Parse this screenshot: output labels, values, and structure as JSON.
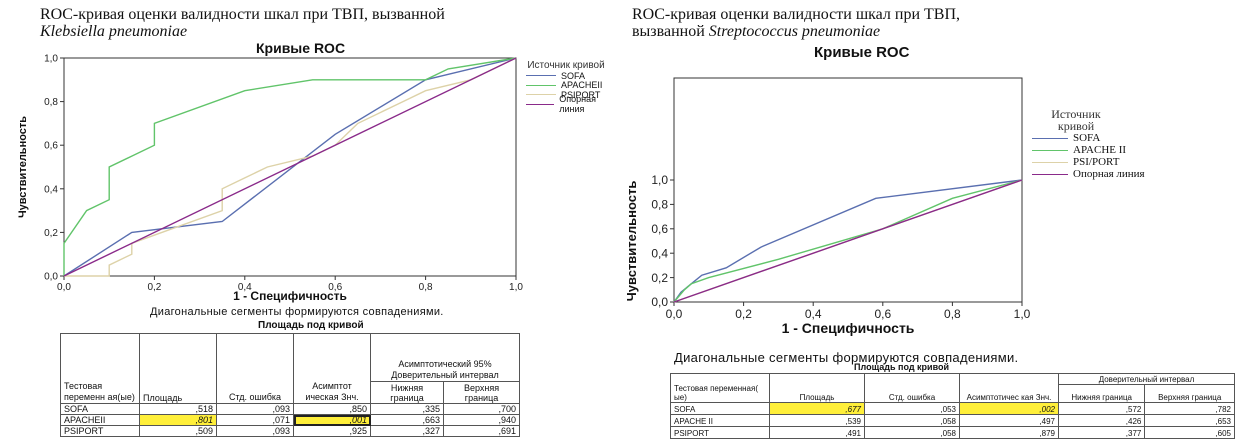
{
  "colors": {
    "SOFA": "#5a6fb0",
    "APACHEII": "#61c46a",
    "PSIPORT": "#ddd2a8",
    "reference": "#8a2a8a",
    "highlight": "#ffef3a"
  },
  "left": {
    "heading_line1": "ROC-кривая оценки валидности шкал при ТВП, вызванной",
    "heading_line2": "Klebsiella pneumoniae",
    "caption": "Диагональные сегменты формируются совпадениями.",
    "table": {
      "title": "Площадь под кривой",
      "header_test_variable": "Тестовая переменн ая(ые)",
      "header_area": "Площадь",
      "header_std_error": "Стд. ошибка",
      "header_asymp_sig": "Асимптот ическая Знч.",
      "header_ci": "Асимптотический 95% Доверительный интервал",
      "header_lower": "Нижняя граница",
      "header_upper": "Верхняя граница",
      "rows": [
        {
          "name": "SOFA",
          "area": ",518",
          "std_error": ",093",
          "sig": ",850",
          "lower": ",335",
          "upper": ",700"
        },
        {
          "name": "APACHEII",
          "area": ",801",
          "std_error": ",071",
          "sig": ",001",
          "lower": ",663",
          "upper": ",940"
        },
        {
          "name": "PSIPORT",
          "area": ",509",
          "std_error": ",093",
          "sig": ",925",
          "lower": ",327",
          "upper": ",691"
        }
      ]
    }
  },
  "right": {
    "heading_line1": "ROC-кривая оценки валидности шкал при ТВП,",
    "heading_line2_prefix": "вызванной",
    "heading_line2_italic": "Streptococcus pneumoniae",
    "caption": "Диагональные сегменты формируются совпадениями.",
    "table": {
      "title": "Площадь под кривой",
      "header_test_variable": "Тестовая переменная( ые)",
      "header_area": "Площадь",
      "header_std_error": "Стд. ошибка",
      "header_asymp_sig": "Асимптотичес кая Знч.",
      "header_ci": "Доверительный интервал",
      "header_lower": "Нижняя граница",
      "header_upper": "Верхняя граница",
      "rows": [
        {
          "name": "SOFA",
          "area": ",677",
          "std_error": ",053",
          "sig": ",002",
          "lower": ",572",
          "upper": ",782"
        },
        {
          "name": "APACHE II",
          "area": ",539",
          "std_error": ",058",
          "sig": ",497",
          "lower": ",426",
          "upper": ",653"
        },
        {
          "name": "PSIPORT",
          "area": ",491",
          "std_error": ",058",
          "sig": ",879",
          "lower": ",377",
          "upper": ",605"
        }
      ]
    }
  },
  "chart_data": [
    {
      "type": "line",
      "title": "Кривые ROC",
      "xlabel": "1 - Специфичность",
      "ylabel": "Чувствительность",
      "xlim": [
        0,
        1
      ],
      "ylim": [
        0,
        1
      ],
      "x_ticks": [
        "0,0",
        "0,2",
        "0,4",
        "0,6",
        "0,8",
        "1,0"
      ],
      "y_ticks": [
        "0,0",
        "0,2",
        "0,4",
        "0,6",
        "0,8",
        "1,0"
      ],
      "legend_title": "Источник кривой",
      "legend_position": "right",
      "series": [
        {
          "name": "SOFA",
          "color_key": "SOFA",
          "points": [
            [
              0,
              0
            ],
            [
              0.15,
              0.2
            ],
            [
              0.35,
              0.25
            ],
            [
              0.6,
              0.65
            ],
            [
              0.8,
              0.9
            ],
            [
              1,
              1
            ]
          ]
        },
        {
          "name": "APACHEII",
          "color_key": "APACHEII",
          "points": [
            [
              0,
              0
            ],
            [
              0,
              0.15
            ],
            [
              0.05,
              0.3
            ],
            [
              0.1,
              0.35
            ],
            [
              0.1,
              0.5
            ],
            [
              0.15,
              0.55
            ],
            [
              0.2,
              0.6
            ],
            [
              0.2,
              0.7
            ],
            [
              0.4,
              0.85
            ],
            [
              0.55,
              0.9
            ],
            [
              0.8,
              0.9
            ],
            [
              0.85,
              0.95
            ],
            [
              1,
              1
            ]
          ]
        },
        {
          "name": "PSIPORT",
          "color_key": "PSIPORT",
          "points": [
            [
              0,
              0
            ],
            [
              0.1,
              0
            ],
            [
              0.1,
              0.05
            ],
            [
              0.15,
              0.1
            ],
            [
              0.15,
              0.15
            ],
            [
              0.35,
              0.3
            ],
            [
              0.35,
              0.4
            ],
            [
              0.4,
              0.45
            ],
            [
              0.45,
              0.5
            ],
            [
              0.55,
              0.55
            ],
            [
              0.6,
              0.6
            ],
            [
              0.65,
              0.7
            ],
            [
              0.75,
              0.8
            ],
            [
              0.8,
              0.85
            ],
            [
              0.9,
              0.9
            ],
            [
              1,
              1
            ]
          ]
        },
        {
          "name": "Опорная линия",
          "color_key": "reference",
          "points": [
            [
              0,
              0
            ],
            [
              1,
              1
            ]
          ]
        }
      ]
    },
    {
      "type": "line",
      "title": "Кривые ROC",
      "xlabel": "1 - Специфичность",
      "ylabel": "Чувствительность",
      "xlim": [
        0,
        1
      ],
      "ylim": [
        0,
        1
      ],
      "x_ticks": [
        "0,0",
        "0,2",
        "0,4",
        "0,6",
        "0,8",
        "1,0"
      ],
      "y_ticks": [
        "0,0",
        "0,2",
        "0,4",
        "0,6",
        "0,8",
        "1,0"
      ],
      "legend_title": "Источник кривой",
      "legend_position": "right",
      "series": [
        {
          "name": "SOFA",
          "color_key": "SOFA",
          "points": [
            [
              0,
              0
            ],
            [
              0.02,
              0.08
            ],
            [
              0.05,
              0.15
            ],
            [
              0.08,
              0.22
            ],
            [
              0.15,
              0.28
            ],
            [
              0.25,
              0.45
            ],
            [
              0.58,
              0.85
            ],
            [
              1,
              1
            ]
          ]
        },
        {
          "name": "APACHE II",
          "color_key": "APACHEII",
          "points": [
            [
              0,
              0
            ],
            [
              0.03,
              0.1
            ],
            [
              0.05,
              0.15
            ],
            [
              0.1,
              0.2
            ],
            [
              0.3,
              0.35
            ],
            [
              0.6,
              0.6
            ],
            [
              0.8,
              0.85
            ],
            [
              1,
              1
            ]
          ]
        },
        {
          "name": "PSI/PORT",
          "color_key": "PSIPORT",
          "points": [
            [
              0,
              0
            ],
            [
              0.1,
              0.1
            ],
            [
              0.3,
              0.3
            ],
            [
              0.5,
              0.5
            ],
            [
              0.7,
              0.7
            ],
            [
              1,
              1
            ]
          ]
        },
        {
          "name": "Опорная линия",
          "color_key": "reference",
          "points": [
            [
              0,
              0
            ],
            [
              1,
              1
            ]
          ]
        }
      ]
    }
  ]
}
